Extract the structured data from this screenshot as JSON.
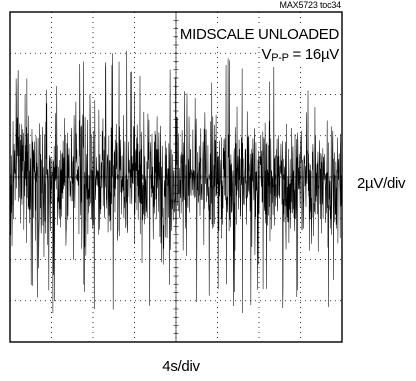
{
  "figure_id": "MAX5723 toc34",
  "annotations": {
    "line1": "MIDSCALE UNLOADED",
    "vpp_prefix": "V",
    "vpp_subscript": "P-P",
    "vpp_value": " = 16µV"
  },
  "scales": {
    "vertical": "2µV/div",
    "horizontal": "4s/div"
  },
  "chart_data": {
    "type": "line",
    "title": "",
    "xlabel": "4s/div",
    "ylabel": "2µV/div",
    "x_unit": "s",
    "y_unit": "µV",
    "x_divisions": 8,
    "y_divisions": 8,
    "x_per_div": 4,
    "y_per_div": 2,
    "xlim": [
      0,
      32
    ],
    "ylim": [
      -8,
      8
    ],
    "grid": "dotted",
    "series": [
      {
        "name": "",
        "color": "#000000",
        "stats": {
          "peak_to_peak": 16,
          "mean": -0.1
        },
        "envelope": {
          "x": [
            0,
            4,
            8,
            12,
            16,
            20,
            24,
            28,
            32
          ],
          "upper": [
            5.6,
            5.3,
            6.4,
            6.2,
            5.4,
            5.9,
            6.1,
            5.2,
            5.7
          ],
          "lower": [
            -6.1,
            -7.0,
            -6.4,
            -6.6,
            -6.0,
            -6.1,
            -6.9,
            -6.3,
            -6.5
          ]
        }
      }
    ]
  }
}
